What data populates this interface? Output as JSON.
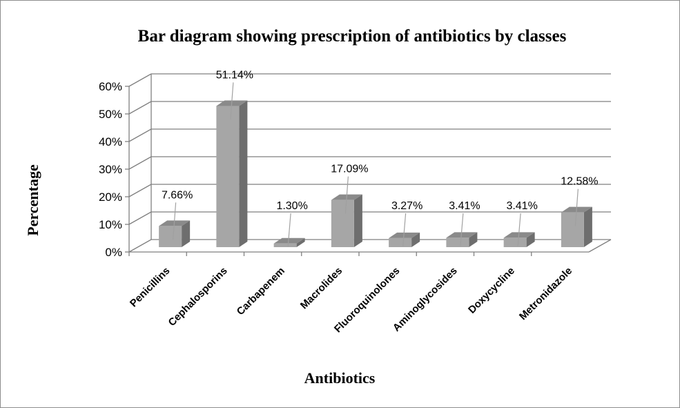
{
  "chart_data": {
    "type": "bar",
    "title": "Bar diagram showing prescription of antibiotics by classes",
    "xlabel": "Antibiotics",
    "ylabel": "Percentage",
    "categories": [
      "Penicillins",
      "Cephalosporins",
      "Carbapenem",
      "Macrolides",
      "Fluoroquinolones",
      "Aminoglycosides",
      "Doxycycline",
      "Metronidazole"
    ],
    "values": [
      7.66,
      51.14,
      1.3,
      17.09,
      3.27,
      3.41,
      3.41,
      12.58
    ],
    "data_labels": [
      "7.66%",
      "51.14%",
      "1.30%",
      "17.09%",
      "3.27%",
      "3.41%",
      "3.41%",
      "12.58%"
    ],
    "y_ticks": [
      "0%",
      "10%",
      "20%",
      "30%",
      "40%",
      "50%",
      "60%"
    ],
    "ylim": [
      0,
      60
    ],
    "grid": true,
    "three_d": true,
    "legend": "none",
    "colors": {
      "bar_front": "#a6a6a6",
      "bar_side": "#6e6e6e",
      "bar_top": "#8a8a8a",
      "grid": "#7f7f7f"
    }
  }
}
